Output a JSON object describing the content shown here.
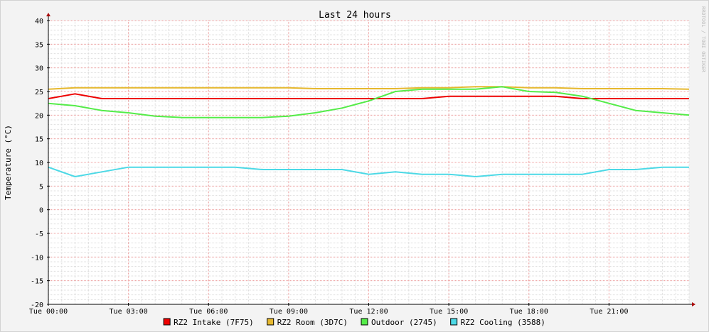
{
  "watermark": "RRDTOOL / TOBI OETIKER",
  "chart_data": {
    "type": "line",
    "title": "Last 24 hours",
    "ylabel": "Temperature (°C)",
    "xlabel": "",
    "ylim": [
      -20,
      40
    ],
    "yticks": [
      -20,
      -15,
      -10,
      -5,
      0,
      5,
      10,
      15,
      20,
      25,
      30,
      35,
      40
    ],
    "xlim": [
      0,
      24
    ],
    "xticks": [
      0,
      3,
      6,
      9,
      12,
      15,
      18,
      21
    ],
    "xtick_labels": [
      "Tue 00:00",
      "Tue 03:00",
      "Tue 06:00",
      "Tue 09:00",
      "Tue 12:00",
      "Tue 15:00",
      "Tue 18:00",
      "Tue 21:00"
    ],
    "grid": true,
    "legend_position": "bottom",
    "series": [
      {
        "name": "RZ2 Intake (7F75)",
        "color": "#ee0000",
        "x": [
          0,
          1,
          2,
          3,
          4,
          5,
          6,
          7,
          8,
          9,
          10,
          11,
          12,
          13,
          14,
          15,
          16,
          17,
          18,
          19,
          20,
          21,
          22,
          23,
          24
        ],
        "values": [
          23.5,
          24.5,
          23.5,
          23.5,
          23.5,
          23.5,
          23.5,
          23.5,
          23.5,
          23.5,
          23.5,
          23.5,
          23.5,
          23.5,
          23.5,
          24,
          24,
          24,
          24,
          24,
          23.5,
          23.5,
          23.5,
          23.5,
          23.5
        ]
      },
      {
        "name": "RZ2 Room (3D7C)",
        "color": "#e6b82e",
        "x": [
          0,
          1,
          2,
          3,
          4,
          5,
          6,
          7,
          8,
          9,
          10,
          11,
          12,
          13,
          14,
          15,
          16,
          17,
          18,
          19,
          20,
          21,
          22,
          23,
          24
        ],
        "values": [
          25.5,
          25.8,
          25.8,
          25.8,
          25.8,
          25.8,
          25.8,
          25.8,
          25.8,
          25.8,
          25.6,
          25.6,
          25.6,
          25.6,
          25.8,
          25.8,
          26,
          26,
          25.8,
          25.8,
          25.6,
          25.6,
          25.6,
          25.6,
          25.5
        ]
      },
      {
        "name": "Outdoor (2745)",
        "color": "#54ec48",
        "x": [
          0,
          1,
          2,
          3,
          4,
          5,
          6,
          7,
          8,
          9,
          10,
          11,
          12,
          13,
          14,
          15,
          16,
          17,
          18,
          19,
          20,
          21,
          22,
          23,
          24
        ],
        "values": [
          22.5,
          22,
          21,
          20.5,
          19.8,
          19.5,
          19.5,
          19.5,
          19.5,
          19.8,
          20.5,
          21.5,
          23,
          25,
          25.5,
          25.5,
          25.5,
          26,
          25,
          24.8,
          24,
          22.5,
          21,
          20.5,
          20
        ]
      },
      {
        "name": "RZ2 Cooling (3588)",
        "color": "#4dd9e6",
        "x": [
          0,
          1,
          2,
          3,
          4,
          5,
          6,
          7,
          8,
          9,
          10,
          11,
          12,
          13,
          14,
          15,
          16,
          17,
          18,
          19,
          20,
          21,
          22,
          23,
          24
        ],
        "values": [
          9,
          7,
          8,
          9,
          9,
          9,
          9,
          9,
          8.5,
          8.5,
          8.5,
          8.5,
          7.5,
          8,
          7.5,
          7.5,
          7,
          7.5,
          7.5,
          7.5,
          7.5,
          8.5,
          8.5,
          9,
          9
        ]
      }
    ]
  }
}
